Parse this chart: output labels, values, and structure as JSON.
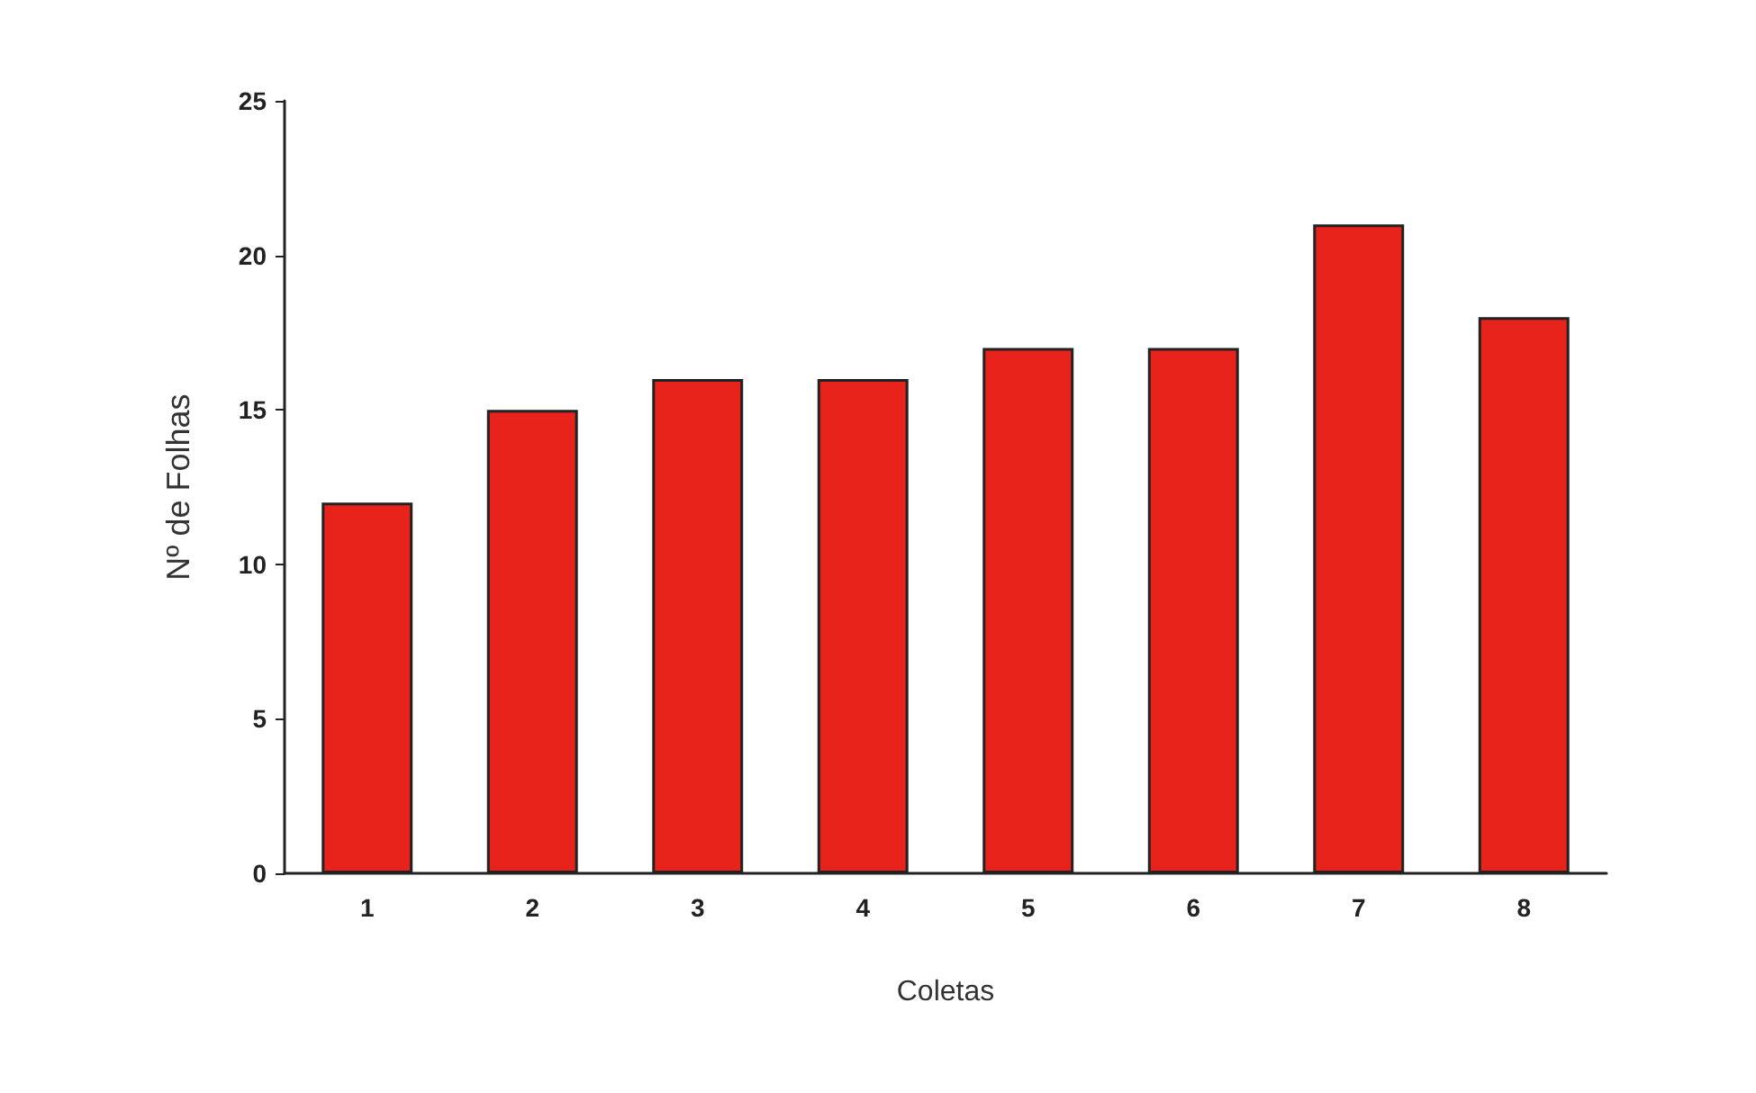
{
  "chart_data": {
    "type": "bar",
    "xlabel": "Coletas",
    "ylabel": "Nº de Folhas",
    "categories": [
      "1",
      "2",
      "3",
      "4",
      "5",
      "6",
      "7",
      "8"
    ],
    "values": [
      12,
      15,
      16,
      16,
      17,
      17,
      21,
      18
    ],
    "color": "#e8231c",
    "ylim": [
      0,
      25
    ],
    "yticks": [
      0,
      5,
      10,
      15,
      20,
      25
    ],
    "grid": false
  }
}
